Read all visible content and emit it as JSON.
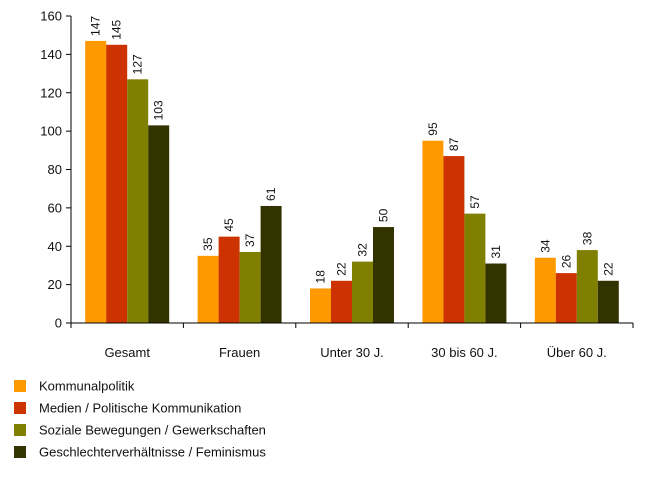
{
  "chart_data": {
    "type": "bar",
    "title": "",
    "xlabel": "",
    "ylabel": "",
    "ylim": [
      0,
      160
    ],
    "yticks": [
      0,
      20,
      40,
      60,
      80,
      100,
      120,
      140,
      160
    ],
    "grid": false,
    "legend_position": "bottom-left",
    "categories": [
      "Gesamt",
      "Frauen",
      "Unter 30 J.",
      "30 bis 60 J.",
      "Über 60 J."
    ],
    "series": [
      {
        "name": "Kommunalpolitik",
        "color": "#FF9900",
        "values": [
          147,
          35,
          18,
          95,
          34
        ]
      },
      {
        "name": "Medien / Politische Kommunikation",
        "color": "#CC3300",
        "values": [
          145,
          45,
          22,
          87,
          26
        ]
      },
      {
        "name": "Soziale Bewegungen / Gewerkschaften",
        "color": "#808000",
        "values": [
          127,
          37,
          32,
          57,
          38
        ]
      },
      {
        "name": "Geschlechterverhältnisse / Feminismus",
        "color": "#333300",
        "values": [
          103,
          61,
          50,
          31,
          22
        ]
      }
    ]
  }
}
